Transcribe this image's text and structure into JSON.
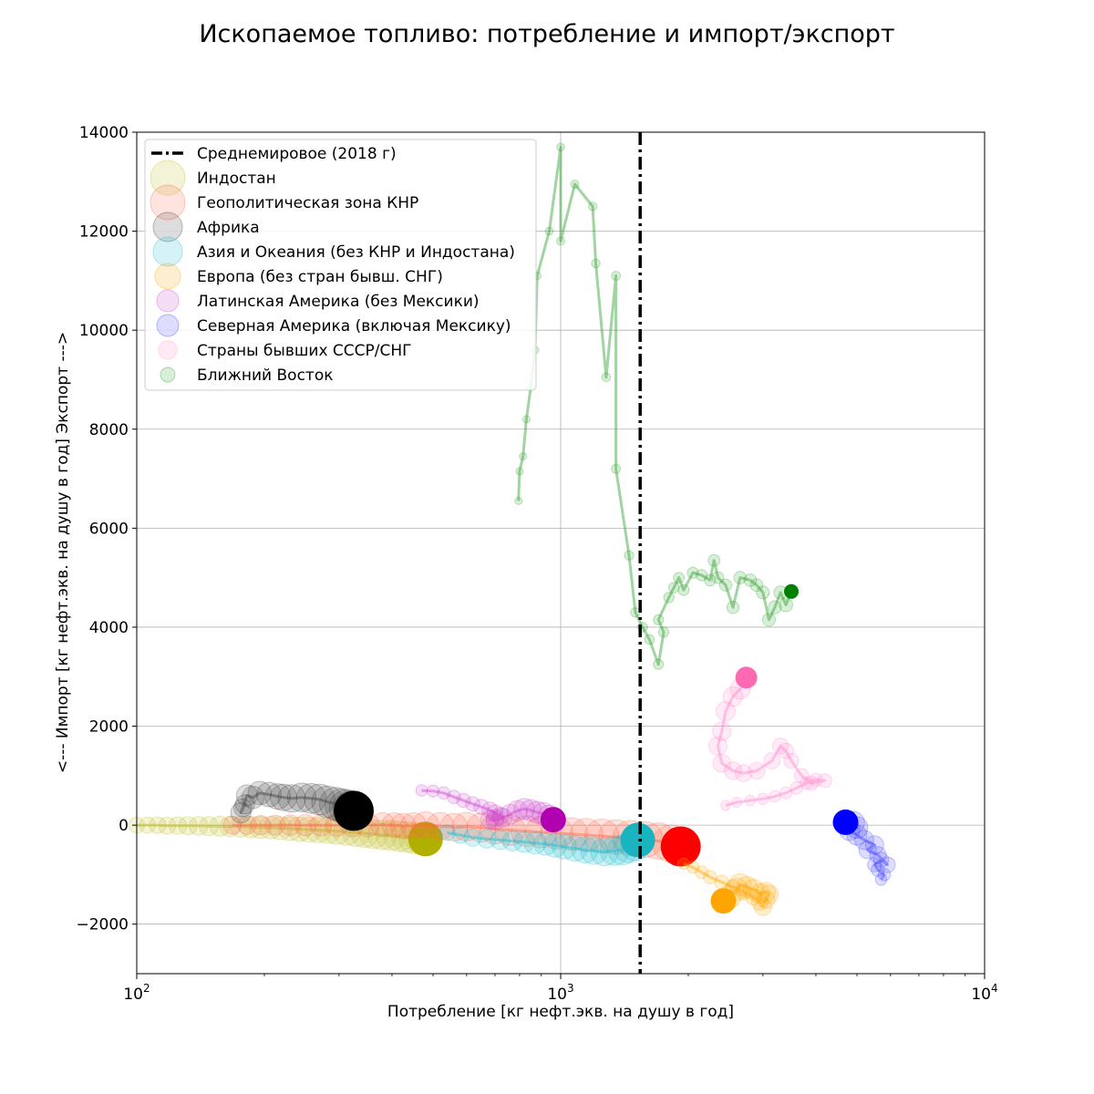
{
  "chart_data": {
    "type": "scatter",
    "title": "Ископаемое топливо: потребление и импорт/экспорт",
    "xlabel": "Потребление [кг нефт.экв. на душу в год]",
    "ylabel": "<--- Импорт [кг нефт.экв. на душу в год] Экспорт --->",
    "xscale": "log",
    "xlim": [
      100,
      10000
    ],
    "ylim": [
      -3000,
      14000
    ],
    "xticks": [
      {
        "value": 100,
        "base": "10",
        "exp": "2"
      },
      {
        "value": 1000,
        "base": "10",
        "exp": "3"
      },
      {
        "value": 10000,
        "base": "10",
        "exp": "4"
      }
    ],
    "yticks": [
      -2000,
      0,
      2000,
      4000,
      6000,
      8000,
      10000,
      12000,
      14000
    ],
    "ytick_labels": [
      "−2000",
      "0",
      "2000",
      "4000",
      "6000",
      "8000",
      "10000",
      "12000",
      "14000"
    ],
    "grid": true,
    "legend_position": "top-left",
    "reference_line": {
      "label": "Среднемировое (2018 г)",
      "x": 1540,
      "style": "dash-dot",
      "color": "#000000"
    },
    "series": [
      {
        "name": "Индостан",
        "color": "#bcbd22",
        "final_color": "#b0b000",
        "size": 19,
        "points": [
          [
            100,
            0
          ],
          [
            106,
            0
          ],
          [
            112,
            0
          ],
          [
            118,
            -10
          ],
          [
            125,
            -10
          ],
          [
            132,
            -10
          ],
          [
            140,
            -15
          ],
          [
            148,
            -20
          ],
          [
            157,
            -20
          ],
          [
            166,
            -25
          ],
          [
            176,
            -30
          ],
          [
            186,
            -40
          ],
          [
            196,
            -45
          ],
          [
            207,
            -50
          ],
          [
            218,
            -60
          ],
          [
            230,
            -70
          ],
          [
            242,
            -80
          ],
          [
            255,
            -90
          ],
          [
            268,
            -100
          ],
          [
            282,
            -110
          ],
          [
            297,
            -120
          ],
          [
            313,
            -135
          ],
          [
            329,
            -150
          ],
          [
            345,
            -165
          ],
          [
            362,
            -180
          ],
          [
            380,
            -200
          ],
          [
            398,
            -210
          ],
          [
            416,
            -225
          ],
          [
            434,
            -240
          ],
          [
            452,
            -260
          ],
          [
            470,
            -270
          ],
          [
            480,
            -280
          ]
        ]
      },
      {
        "name": "Геополитическая зона КНР",
        "color": "#ff6347",
        "final_color": "#ff0000",
        "size": 22,
        "points": [
          [
            168,
            0
          ],
          [
            182,
            0
          ],
          [
            196,
            0
          ],
          [
            212,
            0
          ],
          [
            230,
            0
          ],
          [
            250,
            0
          ],
          [
            272,
            0
          ],
          [
            296,
            0
          ],
          [
            322,
            0
          ],
          [
            350,
            0
          ],
          [
            380,
            10
          ],
          [
            405,
            0
          ],
          [
            425,
            -20
          ],
          [
            450,
            -10
          ],
          [
            480,
            0
          ],
          [
            520,
            -20
          ],
          [
            560,
            -40
          ],
          [
            600,
            -30
          ],
          [
            650,
            -50
          ],
          [
            700,
            -80
          ],
          [
            760,
            -100
          ],
          [
            830,
            -120
          ],
          [
            900,
            -140
          ],
          [
            980,
            -160
          ],
          [
            1060,
            -180
          ],
          [
            1150,
            -200
          ],
          [
            1250,
            -220
          ],
          [
            1350,
            -240
          ],
          [
            1460,
            -260
          ],
          [
            1580,
            -290
          ],
          [
            1700,
            -320
          ],
          [
            1820,
            -370
          ],
          [
            1920,
            -430
          ]
        ]
      },
      {
        "name": "Африка",
        "color": "#404040",
        "final_color": "#000000",
        "size": 22,
        "points": [
          [
            178,
            350
          ],
          [
            180,
            420
          ],
          [
            176,
            250
          ],
          [
            182,
            600
          ],
          [
            188,
            560
          ],
          [
            195,
            650
          ],
          [
            205,
            620
          ],
          [
            215,
            580
          ],
          [
            222,
            560
          ],
          [
            232,
            540
          ],
          [
            245,
            560
          ],
          [
            258,
            540
          ],
          [
            270,
            520
          ],
          [
            282,
            470
          ],
          [
            295,
            430
          ],
          [
            305,
            390
          ],
          [
            313,
            360
          ],
          [
            320,
            330
          ],
          [
            325,
            290
          ]
        ]
      },
      {
        "name": "Азия и Океания (без КНР и Индостана)",
        "color": "#17becf",
        "final_color": "#1ab3c0",
        "size": 19,
        "points": [
          [
            540,
            -150
          ],
          [
            580,
            -200
          ],
          [
            620,
            -250
          ],
          [
            670,
            -280
          ],
          [
            720,
            -300
          ],
          [
            770,
            -320
          ],
          [
            820,
            -340
          ],
          [
            870,
            -360
          ],
          [
            920,
            -380
          ],
          [
            970,
            -410
          ],
          [
            1020,
            -440
          ],
          [
            1080,
            -470
          ],
          [
            1140,
            -500
          ],
          [
            1200,
            -520
          ],
          [
            1270,
            -540
          ],
          [
            1340,
            -520
          ],
          [
            1400,
            -500
          ],
          [
            1450,
            -450
          ],
          [
            1500,
            -400
          ],
          [
            1520,
            -300
          ]
        ]
      },
      {
        "name": "Европа (без стран бывш. СНГ)",
        "color": "#ffa500",
        "final_color": "#ffa500",
        "size": 14,
        "points": [
          [
            1950,
            -780
          ],
          [
            2050,
            -850
          ],
          [
            2150,
            -950
          ],
          [
            2250,
            -1050
          ],
          [
            2400,
            -1150
          ],
          [
            2550,
            -1250
          ],
          [
            2700,
            -1350
          ],
          [
            2850,
            -1450
          ],
          [
            2950,
            -1550
          ],
          [
            3000,
            -1650
          ],
          [
            3050,
            -1500
          ],
          [
            3100,
            -1400
          ],
          [
            3050,
            -1350
          ],
          [
            2950,
            -1380
          ],
          [
            2850,
            -1300
          ],
          [
            2750,
            -1250
          ],
          [
            2650,
            -1200
          ],
          [
            2600,
            -1300
          ],
          [
            2500,
            -1450
          ],
          [
            2420,
            -1530
          ]
        ]
      },
      {
        "name": "Латинская Америка (без Мексики)",
        "color": "#cc44cc",
        "final_color": "#b000b0",
        "size": 14,
        "points": [
          [
            470,
            700
          ],
          [
            500,
            690
          ],
          [
            530,
            650
          ],
          [
            560,
            570
          ],
          [
            590,
            500
          ],
          [
            620,
            430
          ],
          [
            650,
            370
          ],
          [
            680,
            310
          ],
          [
            700,
            250
          ],
          [
            720,
            190
          ],
          [
            700,
            140
          ],
          [
            680,
            110
          ],
          [
            700,
            90
          ],
          [
            730,
            150
          ],
          [
            760,
            220
          ],
          [
            790,
            290
          ],
          [
            820,
            330
          ],
          [
            850,
            300
          ],
          [
            880,
            260
          ],
          [
            910,
            230
          ],
          [
            940,
            170
          ],
          [
            960,
            110
          ]
        ]
      },
      {
        "name": "Северная Америка (включая Мексику)",
        "color": "#4040ff",
        "final_color": "#0000ff",
        "size": 14,
        "points": [
          [
            5700,
            -1100
          ],
          [
            5800,
            -1000
          ],
          [
            5600,
            -900
          ],
          [
            5500,
            -800
          ],
          [
            5700,
            -700
          ],
          [
            5900,
            -800
          ],
          [
            5600,
            -600
          ],
          [
            5300,
            -500
          ],
          [
            5500,
            -400
          ],
          [
            5200,
            -300
          ],
          [
            5000,
            -200
          ],
          [
            4800,
            -100
          ],
          [
            5000,
            -50
          ],
          [
            4900,
            50
          ],
          [
            4700,
            60
          ]
        ]
      },
      {
        "name": "Страны бывших СССР/СНГ",
        "color": "#ff88cc",
        "final_color": "#ff69b4",
        "size": 12,
        "points": [
          [
            2450,
            400
          ],
          [
            2600,
            460
          ],
          [
            2800,
            500
          ],
          [
            3000,
            530
          ],
          [
            3200,
            580
          ],
          [
            3400,
            650
          ],
          [
            3600,
            750
          ],
          [
            3800,
            850
          ],
          [
            4000,
            920
          ],
          [
            4200,
            900
          ],
          [
            3900,
            850
          ],
          [
            3700,
            1000
          ],
          [
            3500,
            1300
          ],
          [
            3400,
            1500
          ],
          [
            3300,
            1600
          ],
          [
            3150,
            1300
          ],
          [
            2900,
            1100
          ],
          [
            2700,
            1050
          ],
          [
            2550,
            1100
          ],
          [
            2400,
            1250
          ],
          [
            2350,
            1600
          ],
          [
            2400,
            1900
          ],
          [
            2450,
            2300
          ],
          [
            2550,
            2600
          ],
          [
            2650,
            2750
          ],
          [
            2740,
            2980
          ]
        ]
      },
      {
        "name": "Ближний Восток",
        "color": "#2ca02c",
        "final_color": "#008000",
        "size": 8,
        "points": [
          [
            795,
            6550
          ],
          [
            800,
            7150
          ],
          [
            815,
            7450
          ],
          [
            830,
            8200
          ],
          [
            850,
            8850
          ],
          [
            870,
            9600
          ],
          [
            880,
            11100
          ],
          [
            940,
            12000
          ],
          [
            1000,
            13700
          ],
          [
            1000,
            11800
          ],
          [
            1080,
            12950
          ],
          [
            1190,
            12500
          ],
          [
            1210,
            11350
          ],
          [
            1280,
            9050
          ],
          [
            1350,
            11100
          ],
          [
            1350,
            7200
          ],
          [
            1450,
            5450
          ],
          [
            1500,
            4300
          ],
          [
            1560,
            4000
          ],
          [
            1620,
            3750
          ],
          [
            1700,
            3250
          ],
          [
            1750,
            3900
          ],
          [
            1700,
            4150
          ],
          [
            1800,
            4600
          ],
          [
            1850,
            4800
          ],
          [
            1900,
            5000
          ],
          [
            1950,
            4750
          ],
          [
            2050,
            5100
          ],
          [
            2150,
            5050
          ],
          [
            2250,
            4950
          ],
          [
            2300,
            5350
          ],
          [
            2350,
            5000
          ],
          [
            2450,
            4850
          ],
          [
            2550,
            4400
          ],
          [
            2650,
            5000
          ],
          [
            2800,
            4950
          ],
          [
            2900,
            4850
          ],
          [
            3000,
            4700
          ],
          [
            3100,
            4150
          ],
          [
            3200,
            4400
          ],
          [
            3300,
            4700
          ],
          [
            3400,
            4450
          ],
          [
            3500,
            4720
          ]
        ]
      }
    ]
  }
}
